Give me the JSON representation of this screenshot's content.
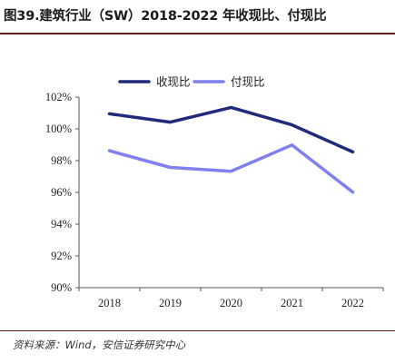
{
  "header": {
    "title": "图39.建筑行业（SW）2018-2022 年收现比、付现比"
  },
  "footer": {
    "source": "资料来源：Wind，安信证券研究中心"
  },
  "chart_data": {
    "type": "line",
    "x": [
      "2018",
      "2019",
      "2020",
      "2021",
      "2022"
    ],
    "series": [
      {
        "name": "收现比",
        "color": "#1f2a7a",
        "values": [
          100.95,
          100.42,
          101.35,
          100.25,
          98.55
        ]
      },
      {
        "name": "付现比",
        "color": "#7f7fef",
        "values": [
          98.62,
          97.57,
          97.33,
          98.98,
          96.02
        ]
      }
    ],
    "ylim": [
      90,
      102
    ],
    "yticks": [
      "90%",
      "92%",
      "94%",
      "96%",
      "98%",
      "100%",
      "102%"
    ],
    "ytick_values": [
      90,
      92,
      94,
      96,
      98,
      100,
      102
    ],
    "legend": "top-center",
    "grid": false,
    "title": "",
    "xlabel": "",
    "ylabel": ""
  }
}
